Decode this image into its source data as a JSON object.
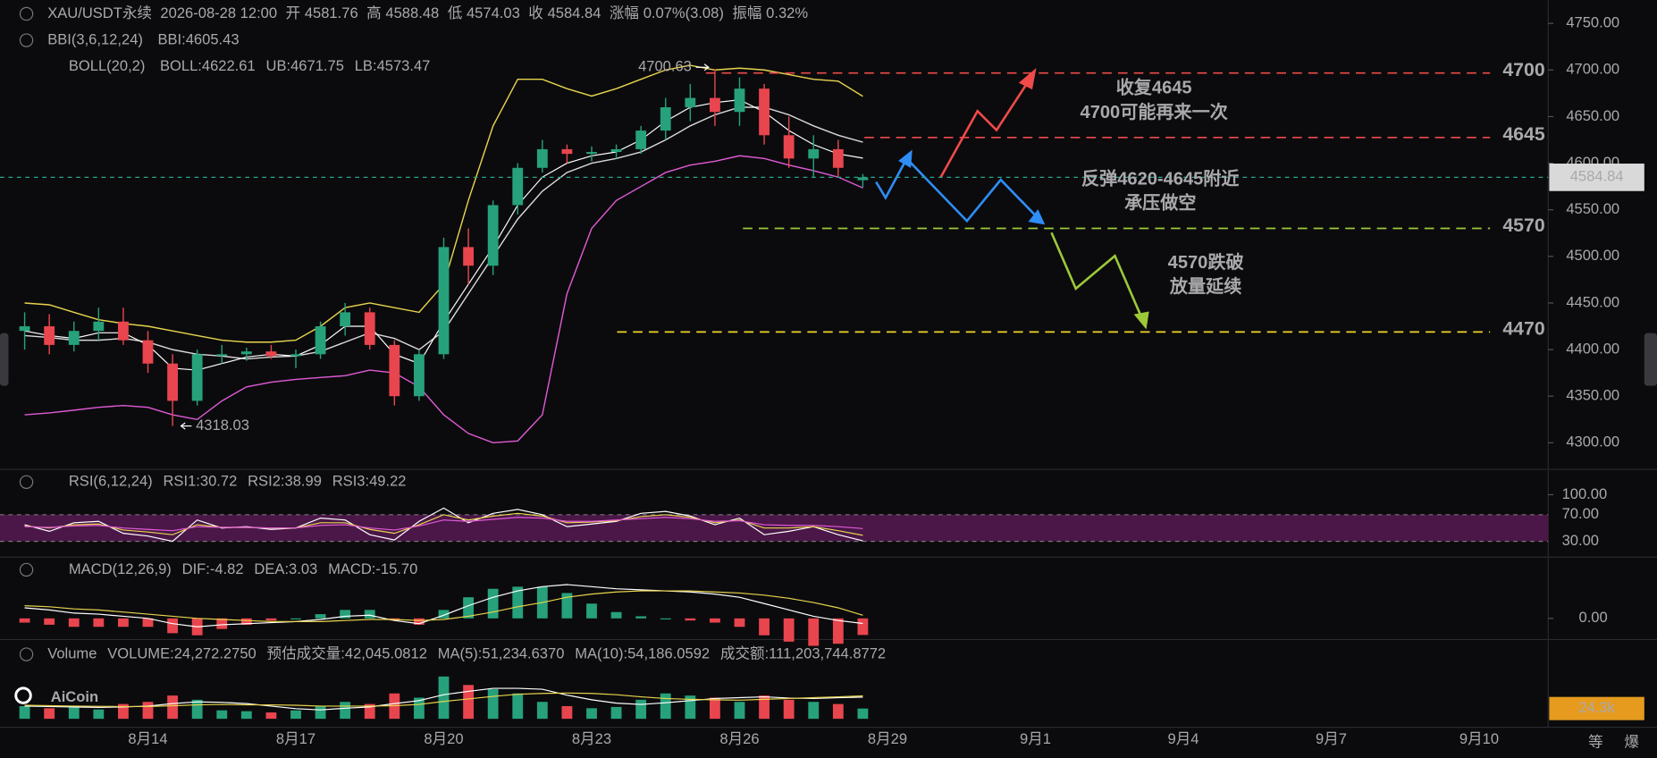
{
  "chart_data": {
    "type": "candlestick",
    "symbol": "XAU/USDT永续",
    "time": "2026-08-28 12:00",
    "header_labels": {
      "open": "开",
      "high": "高",
      "low": "低",
      "close": "收",
      "change": "涨幅",
      "amplitude": "振幅"
    },
    "change": "0.07%(3.08)",
    "amplitude": "0.32%",
    "up_color": "#26a17b",
    "down_color": "#e8454e",
    "x": [
      11.5,
      12,
      12.5,
      13,
      13.5,
      14,
      14.5,
      15,
      15.5,
      16,
      16.5,
      17,
      17.5,
      18,
      18.5,
      19,
      19.5,
      20,
      20.5,
      21,
      21.5,
      22,
      22.5,
      23,
      23.5,
      24,
      24.5,
      25,
      25.5,
      26,
      26.5,
      27,
      27.5,
      28,
      28.5
    ],
    "open": [
      4420,
      4425,
      4405,
      4420,
      4430,
      4410,
      4385,
      4345,
      4395,
      4395,
      4398,
      4393,
      4395,
      4425,
      4440,
      4405,
      4350,
      4395,
      4510,
      4490,
      4555,
      4595,
      4615,
      4610,
      4612,
      4615,
      4635,
      4660,
      4670,
      4655,
      4680,
      4630,
      4605,
      4615,
      4581.76
    ],
    "high": [
      4440,
      4438,
      4430,
      4445,
      4445,
      4420,
      4395,
      4400,
      4405,
      4402,
      4405,
      4400,
      4430,
      4450,
      4445,
      4410,
      4400,
      4520,
      4530,
      4560,
      4600,
      4625,
      4620,
      4618,
      4620,
      4640,
      4670,
      4685,
      4700.63,
      4692,
      4685,
      4650,
      4630,
      4625,
      4588.48
    ],
    "low": [
      4400,
      4395,
      4398,
      4410,
      4405,
      4375,
      4318.03,
      4340,
      4385,
      4388,
      4390,
      4380,
      4390,
      4415,
      4400,
      4340,
      4345,
      4390,
      4470,
      4480,
      4545,
      4590,
      4600,
      4602,
      4605,
      4610,
      4625,
      4645,
      4640,
      4640,
      4620,
      4595,
      4585,
      4585,
      4574.03
    ],
    "close": [
      4425,
      4405,
      4420,
      4430,
      4410,
      4385,
      4345,
      4395,
      4395,
      4398,
      4393,
      4395,
      4425,
      4440,
      4405,
      4350,
      4395,
      4510,
      4490,
      4555,
      4595,
      4615,
      4610,
      4612,
      4615,
      4635,
      4660,
      4670,
      4655,
      4680,
      4630,
      4605,
      4615,
      4595,
      4584.84
    ],
    "xlim": [
      11,
      42.4
    ],
    "xticks": [
      {
        "value": 14,
        "label": "8月14"
      },
      {
        "value": 17,
        "label": "8月17"
      },
      {
        "value": 20,
        "label": "8月20"
      },
      {
        "value": 23,
        "label": "8月23"
      },
      {
        "value": 26,
        "label": "8月26"
      },
      {
        "value": 29,
        "label": "8月29"
      },
      {
        "value": 32,
        "label": "9月1"
      },
      {
        "value": 35,
        "label": "9月4"
      },
      {
        "value": 38,
        "label": "9月7"
      },
      {
        "value": 41,
        "label": "9月10"
      }
    ],
    "ylim": [
      4276,
      4775
    ],
    "yticks": [
      {
        "value": 4300,
        "label": "4300.00"
      },
      {
        "value": 4350,
        "label": "4350.00"
      },
      {
        "value": 4400,
        "label": "4400.00"
      },
      {
        "value": 4450,
        "label": "4450.00"
      },
      {
        "value": 4500,
        "label": "4500.00"
      },
      {
        "value": 4550,
        "label": "4550.00"
      },
      {
        "value": 4600,
        "label": "4600.00"
      },
      {
        "value": 4650,
        "label": "4650.00"
      },
      {
        "value": 4700,
        "label": "4700.00"
      },
      {
        "value": 4750,
        "label": "4750.00"
      }
    ],
    "bbi": {
      "label": "BBI(3,6,12,24)",
      "name": "BBI:4605.43",
      "color": "#ffffff",
      "values": [
        4420,
        4415,
        4412,
        4418,
        4418,
        4405,
        4380,
        4378,
        4385,
        4392,
        4395,
        4393,
        4405,
        4425,
        4425,
        4395,
        4385,
        4430,
        4470,
        4510,
        4555,
        4585,
        4600,
        4608,
        4612,
        4625,
        4645,
        4660,
        4665,
        4668,
        4655,
        4635,
        4620,
        4610,
        4605.43
      ]
    },
    "boll": {
      "label": "BOLL(20,2)",
      "series": [
        {
          "name": "BOLL:4622.61",
          "color": "#d8d8d8",
          "values": [
            4415,
            4413,
            4410,
            4410,
            4412,
            4408,
            4400,
            4395,
            4393,
            4390,
            4392,
            4393,
            4398,
            4408,
            4418,
            4412,
            4400,
            4420,
            4460,
            4500,
            4540,
            4570,
            4590,
            4600,
            4605,
            4612,
            4625,
            4640,
            4652,
            4660,
            4660,
            4652,
            4640,
            4630,
            4622.61
          ]
        },
        {
          "name": "UB:4671.75",
          "color": "#e8d44d",
          "values": [
            4450,
            4448,
            4440,
            4432,
            4428,
            4425,
            4420,
            4415,
            4410,
            4408,
            4408,
            4410,
            4425,
            4445,
            4450,
            4445,
            4440,
            4470,
            4560,
            4640,
            4690,
            4690,
            4680,
            4672,
            4680,
            4690,
            4700,
            4705,
            4700,
            4702,
            4700,
            4695,
            4690,
            4688,
            4671.75
          ]
        },
        {
          "name": "LB:4573.47",
          "color": "#e05ad6",
          "values": [
            4330,
            4332,
            4335,
            4338,
            4340,
            4338,
            4330,
            4325,
            4345,
            4360,
            4365,
            4368,
            4370,
            4372,
            4378,
            4375,
            4360,
            4330,
            4310,
            4300,
            4302,
            4330,
            4460,
            4530,
            4560,
            4575,
            4590,
            4598,
            4602,
            4608,
            4605,
            4598,
            4592,
            4585,
            4573.47
          ]
        }
      ]
    },
    "rsi": {
      "label": "RSI(6,12,24)",
      "ylim": [
        0,
        100
      ],
      "yticks": [
        {
          "value": 100,
          "label": "100.00"
        },
        {
          "value": 70,
          "label": "70.00"
        },
        {
          "value": 30,
          "label": "30.00"
        }
      ],
      "band_color": "#4a1748",
      "series": [
        {
          "name": "RSI1:30.72",
          "color": "#ffffff",
          "values": [
            55,
            45,
            58,
            60,
            42,
            38,
            30,
            62,
            50,
            52,
            48,
            50,
            65,
            62,
            40,
            32,
            60,
            80,
            58,
            72,
            78,
            70,
            52,
            56,
            60,
            72,
            75,
            68,
            55,
            65,
            40,
            45,
            52,
            40,
            30.72
          ]
        },
        {
          "name": "RSI2:38.99",
          "color": "#e8d44d",
          "values": [
            53,
            50,
            55,
            56,
            47,
            44,
            40,
            55,
            51,
            51,
            50,
            50,
            58,
            58,
            48,
            42,
            55,
            70,
            62,
            68,
            72,
            68,
            58,
            59,
            61,
            67,
            70,
            66,
            58,
            62,
            50,
            50,
            52,
            46,
            38.99
          ]
        },
        {
          "name": "RSI3:49.22",
          "color": "#e05ad6",
          "values": [
            52,
            51,
            53,
            54,
            50,
            48,
            46,
            52,
            51,
            51,
            50,
            50,
            54,
            55,
            50,
            47,
            53,
            62,
            60,
            63,
            66,
            65,
            60,
            60,
            62,
            64,
            66,
            64,
            60,
            61,
            55,
            54,
            54,
            52,
            49.22
          ]
        }
      ]
    },
    "macd": {
      "label": "MACD(12,26,9)",
      "ylim": [
        -20,
        57
      ],
      "yticks": [
        {
          "value": 0,
          "label": "0.00"
        }
      ],
      "series": [
        {
          "name": "DIF:-4.82",
          "color": "#ffffff",
          "values": [
            10,
            8,
            5,
            4,
            2,
            0,
            -5,
            -8,
            -6,
            -5,
            -4,
            -3,
            -1,
            2,
            3,
            -2,
            -5,
            3,
            12,
            20,
            26,
            30,
            32,
            30,
            28,
            27,
            26,
            25,
            23,
            20,
            14,
            8,
            2,
            -2,
            -4.82
          ]
        },
        {
          "name": "DEA:3.03",
          "color": "#e8d44d",
          "values": [
            12,
            11,
            9,
            8,
            6,
            4,
            2,
            0,
            -1,
            -2,
            -3,
            -3,
            -3,
            -2,
            -1,
            -1,
            -2,
            -1,
            2,
            6,
            11,
            15,
            20,
            23,
            25,
            26,
            26,
            26,
            25,
            24,
            22,
            19,
            15,
            10,
            3.03
          ]
        }
      ],
      "histogram": {
        "name": "MACD:-15.70",
        "color": "#e8454e",
        "values": [
          -4,
          -6,
          -8,
          -8,
          -8,
          -8,
          -14,
          -16,
          -10,
          -6,
          -2,
          0,
          4,
          8,
          8,
          -2,
          -6,
          8,
          20,
          28,
          30,
          30,
          24,
          14,
          6,
          2,
          0,
          -2,
          -4,
          -8,
          -16,
          -22,
          -26,
          -24,
          -15.7
        ]
      }
    },
    "volume": {
      "label": "Volume",
      "info": [
        "VOLUME:24,272.2750",
        "预估成交量:42,045.0812"
      ],
      "turnover": "成交额:111,203,744.8772",
      "ylim": [
        0,
        150000
      ],
      "current_label": "24.3k",
      "current_color": "#e69b1f",
      "values": [
        30000,
        25000,
        28000,
        22000,
        35000,
        40000,
        55000,
        45000,
        20000,
        18000,
        15000,
        20000,
        30000,
        40000,
        35000,
        60000,
        50000,
        100000,
        80000,
        70000,
        60000,
        40000,
        30000,
        25000,
        28000,
        45000,
        60000,
        55000,
        50000,
        40000,
        55000,
        45000,
        40000,
        35000,
        24272.275
      ],
      "series": [
        {
          "name": "MA(5):51,234.6370",
          "color": "#ffffff",
          "values": [
            30000,
            29000,
            28000,
            27000,
            28000,
            30000,
            36000,
            40000,
            39000,
            36000,
            30000,
            24000,
            21000,
            25000,
            28000,
            36000,
            43000,
            57000,
            65000,
            72000,
            72000,
            70000,
            56000,
            45000,
            37000,
            34000,
            38000,
            43000,
            48000,
            50000,
            52000,
            49000,
            48000,
            50000,
            51234.637
          ]
        },
        {
          "name": "MA(10):54,186.0592",
          "color": "#e8d44d",
          "values": [
            32000,
            31000,
            30000,
            29500,
            29000,
            29000,
            31000,
            33000,
            34000,
            33000,
            33000,
            32000,
            30000,
            30000,
            30000,
            31000,
            34000,
            41000,
            47000,
            53000,
            58000,
            60000,
            61000,
            60000,
            57000,
            52000,
            48000,
            46000,
            45000,
            44000,
            46000,
            48000,
            50000,
            52000,
            54186.0592
          ]
        }
      ]
    },
    "annotations": {
      "levels": [
        {
          "label": "4700",
          "color": "#f04a4a"
        },
        {
          "label": "4645",
          "color": "#f04a4a"
        },
        {
          "label": "4570",
          "color": "#9cc83a"
        },
        {
          "label": "4470",
          "color": "#f2d52a"
        }
      ],
      "notes": [
        {
          "lines": [
            "收复4645",
            "4700可能再来一次"
          ],
          "color": "#f04a4a"
        },
        {
          "lines": [
            "反弹4620-4645附近",
            "承压做空"
          ],
          "color": "#2f8df5"
        },
        {
          "lines": [
            "4570跌破",
            "放量延续"
          ],
          "color": "#9cc83a"
        }
      ]
    },
    "logo": "AiCoin",
    "corner_buttons": [
      "等",
      "爆"
    ]
  }
}
